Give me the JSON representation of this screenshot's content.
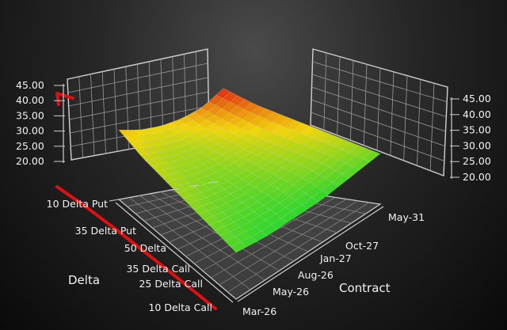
{
  "chart_data": {
    "type": "surface3d",
    "title": "",
    "z_ticks": [
      "45.00",
      "40.00",
      "35.00",
      "30.00",
      "25.00",
      "20.00"
    ],
    "zlim": [
      20,
      45
    ],
    "delta_axis": {
      "label": "Delta",
      "ticks": [
        "10 Delta Put",
        "35 Delta Put",
        "50 Delta",
        "35 Delta Call",
        "25 Delta Call",
        "10 Delta Call"
      ]
    },
    "contract_axis": {
      "label": "Contract",
      "ticks": [
        "Mar-26",
        "May-26",
        "Aug-26",
        "Jan-27",
        "Oct-27",
        "May-31"
      ]
    },
    "surface": {
      "rows": [
        "10 Delta Put",
        "35 Delta Put",
        "50 Delta",
        "35 Delta Call",
        "25 Delta Call",
        "10 Delta Call"
      ],
      "columns": [
        "Mar-26",
        "May-26",
        "Aug-26",
        "Jan-27",
        "Oct-27",
        "May-31"
      ],
      "values": [
        [
          37,
          34,
          32,
          30,
          28,
          26
        ],
        [
          33,
          31,
          29,
          28,
          27,
          25
        ],
        [
          31,
          29,
          28,
          27,
          26,
          24
        ],
        [
          30,
          28,
          27,
          26,
          25,
          24
        ],
        [
          30,
          28,
          27,
          26,
          25,
          24
        ],
        [
          31,
          29,
          28,
          27,
          26,
          25
        ]
      ]
    },
    "annotation_line": {
      "color": "#e01010",
      "values": [
        42,
        39,
        36,
        33,
        30,
        28,
        26,
        25
      ]
    },
    "colors": {
      "low": "#2ed62e",
      "mid": "#f2d60a",
      "high": "#e23a10"
    }
  }
}
